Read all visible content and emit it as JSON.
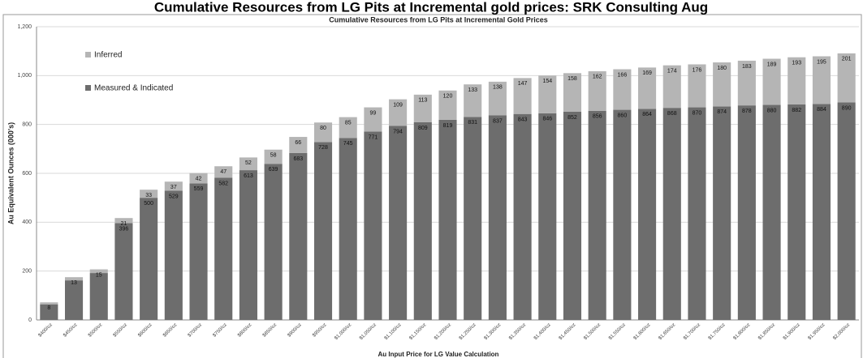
{
  "chart_data": {
    "type": "stacked_bar",
    "title": "Cumulative Resources from LG Pits at Incremental gold prices: SRK Consulting Aug",
    "subtitle": "Cumulative Resources from LG Pits at Incremental Gold Prices",
    "y_label": "Au Equivalent Ounces (000's)",
    "x_label": "Au Input Price for LG Value Calculation",
    "categories": [
      "$400/oz",
      "$450/oz",
      "$500/oz",
      "$550/oz",
      "$600/oz",
      "$650/oz",
      "$700/oz",
      "$750/oz",
      "$800/oz",
      "$850/oz",
      "$900/oz",
      "$950/oz",
      "$1,000/oz",
      "$1,050/oz",
      "$1,100/oz",
      "$1,150/oz",
      "$1,200/oz",
      "$1,250/oz",
      "$1,300/oz",
      "$1,350/oz",
      "$1,400/oz",
      "$1,450/oz",
      "$1,500/oz",
      "$1,550/oz",
      "$1,600/oz",
      "$1,650/oz",
      "$1,700/oz",
      "$1,750/oz",
      "$1,800/oz",
      "$1,850/oz",
      "$1,900/oz",
      "$1,950/oz",
      "$2,000/oz"
    ],
    "series": [
      {
        "name": "Measured & Indicated",
        "color": "#6d6d6d",
        "values": [
          64,
          162,
          192,
          396,
          500,
          529,
          559,
          582,
          613,
          639,
          683,
          728,
          745,
          771,
          794,
          809,
          819,
          831,
          837,
          843,
          846,
          852,
          856,
          860,
          864,
          868,
          870,
          874,
          878,
          880,
          882,
          884,
          890
        ],
        "value_labels": [
          null,
          null,
          null,
          "396",
          "500",
          "529",
          "559",
          "582",
          "613",
          "639",
          "683",
          "728",
          "745",
          "771",
          "794",
          "809",
          "819",
          "831",
          "837",
          "843",
          "846",
          "852",
          "856",
          "860",
          "864",
          "868",
          "870",
          "874",
          "878",
          "880",
          "882",
          "884",
          "890"
        ]
      },
      {
        "name": "Inferred",
        "color": "#b5b5b5",
        "values": [
          8,
          13,
          15,
          21,
          33,
          37,
          42,
          47,
          52,
          58,
          66,
          80,
          85,
          99,
          109,
          113,
          120,
          133,
          138,
          147,
          154,
          158,
          162,
          166,
          169,
          174,
          176,
          180,
          183,
          189,
          193,
          195,
          201
        ]
      }
    ],
    "ylim": [
      0,
      1200
    ],
    "yticks": [
      0,
      200,
      400,
      600,
      800,
      {
        "value": 1000,
        "label": "1,000"
      },
      {
        "value": 1200,
        "label": "1,200"
      }
    ],
    "grid": true,
    "legend": "upper left"
  }
}
